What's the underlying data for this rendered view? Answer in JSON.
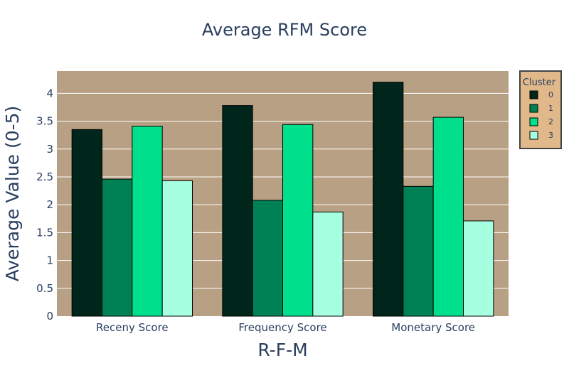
{
  "chart_data": {
    "type": "bar",
    "title": "Average RFM Score",
    "xlabel": "R-F-M",
    "ylabel": "Average Value (0-5)",
    "categories": [
      "Receny Score",
      "Frequency Score",
      "Monetary Score"
    ],
    "ylim": [
      0,
      4.4
    ],
    "yticks": [
      0,
      0.5,
      1,
      1.5,
      2,
      2.5,
      3,
      3.5,
      4
    ],
    "ytick_labels": [
      "0",
      "0.5",
      "1",
      "1.5",
      "2",
      "2.5",
      "3",
      "3.5",
      "4"
    ],
    "grid": true,
    "legend": {
      "title": "Cluster",
      "position": "top-right"
    },
    "series": [
      {
        "name": "0",
        "color": "#00261b",
        "values": [
          3.35,
          3.78,
          4.2
        ]
      },
      {
        "name": "1",
        "color": "#008055",
        "values": [
          2.46,
          2.08,
          2.33
        ]
      },
      {
        "name": "2",
        "color": "#00e08c",
        "values": [
          3.41,
          3.44,
          3.57
        ]
      },
      {
        "name": "3",
        "color": "#a5ffe0",
        "values": [
          2.43,
          1.87,
          1.71
        ]
      }
    ],
    "colors": {
      "plot_background": "#b8a084",
      "legend_background": "#e0b88a",
      "gridline": "#ffffff",
      "bar_outline": "#000000"
    }
  }
}
